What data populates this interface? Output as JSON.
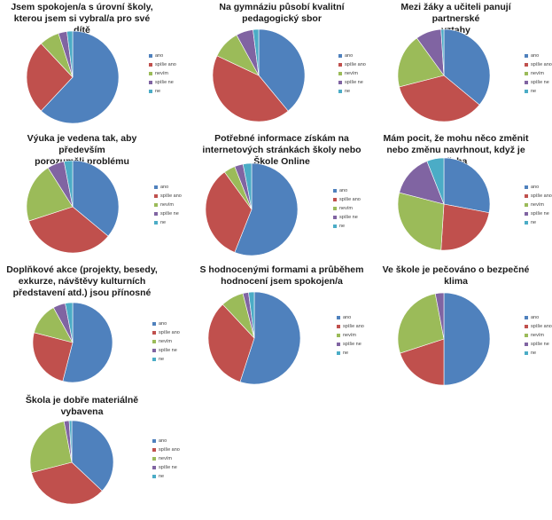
{
  "legend_labels": [
    "ano",
    "spíše ano",
    "nevím",
    "spíše ne",
    "ne"
  ],
  "colors": [
    "#4F81BD",
    "#C0504D",
    "#9BBB59",
    "#8064A2",
    "#4BACC6"
  ],
  "chart_data": [
    {
      "type": "pie",
      "title": "Jsem spokojen/a s úrovní školy,\nkterou jsem si vybral/a pro své dítě",
      "categories": [
        "ano",
        "spíše ano",
        "nevím",
        "spíše ne",
        "ne"
      ],
      "values": [
        62,
        26,
        7,
        3,
        2
      ]
    },
    {
      "type": "pie",
      "title": "Na gymnáziu působí kvalitní\npedagogický sbor",
      "categories": [
        "ano",
        "spíše ano",
        "nevím",
        "spíše ne",
        "ne"
      ],
      "values": [
        39,
        43,
        10,
        6,
        2
      ]
    },
    {
      "type": "pie",
      "title": "Mezi žáky a učiteli panují partnerské\nvztahy",
      "categories": [
        "ano",
        "spíše ano",
        "nevím",
        "spíše ne",
        "ne"
      ],
      "values": [
        36,
        35,
        19,
        9,
        1
      ]
    },
    {
      "type": "pie",
      "title": "Výuka je vedena tak, aby především\nporozuměli problému",
      "categories": [
        "ano",
        "spíše ano",
        "nevím",
        "spíše ne",
        "ne"
      ],
      "values": [
        36,
        34,
        21,
        6,
        3
      ]
    },
    {
      "type": "pie",
      "title": "Potřebné informace získám na\ninternetových stránkách školy nebo\nŠkole Online",
      "categories": [
        "ano",
        "spíše ano",
        "nevím",
        "spíše ne",
        "ne"
      ],
      "values": [
        56,
        34,
        4,
        3,
        3
      ]
    },
    {
      "type": "pie",
      "title": "Mám pocit, že mohu něco změnit\nnebo změnu navrhnout, když je třeba",
      "categories": [
        "ano",
        "spíše ano",
        "nevím",
        "spíše ne",
        "ne"
      ],
      "values": [
        28,
        23,
        28,
        15,
        6
      ]
    },
    {
      "type": "pie",
      "title": "Doplňkové akce (projekty, besedy,\nexkurze, návštěvy kulturních\npředstavení atd.) jsou přínosné",
      "categories": [
        "ano",
        "spíše ano",
        "nevím",
        "spíše ne",
        "ne"
      ],
      "values": [
        54,
        25,
        13,
        5,
        3
      ]
    },
    {
      "type": "pie",
      "title": "S hodnocenými formami a průběhem\nhodnocení jsem spokojen/a",
      "categories": [
        "ano",
        "spíše ano",
        "nevím",
        "spíše ne",
        "ne"
      ],
      "values": [
        55,
        33,
        8,
        2,
        2
      ]
    },
    {
      "type": "pie",
      "title": "Ve škole je pečováno o bezpečné\nklima",
      "categories": [
        "ano",
        "spíše ano",
        "nevím",
        "spíše ne",
        "ne"
      ],
      "values": [
        50,
        20,
        27,
        3,
        0
      ]
    },
    {
      "type": "pie",
      "title": "Škola je dobře materiálně vybavena",
      "categories": [
        "ano",
        "spíše ano",
        "nevím",
        "spíše ne",
        "ne"
      ],
      "values": [
        37,
        34,
        26,
        2,
        1
      ]
    }
  ]
}
